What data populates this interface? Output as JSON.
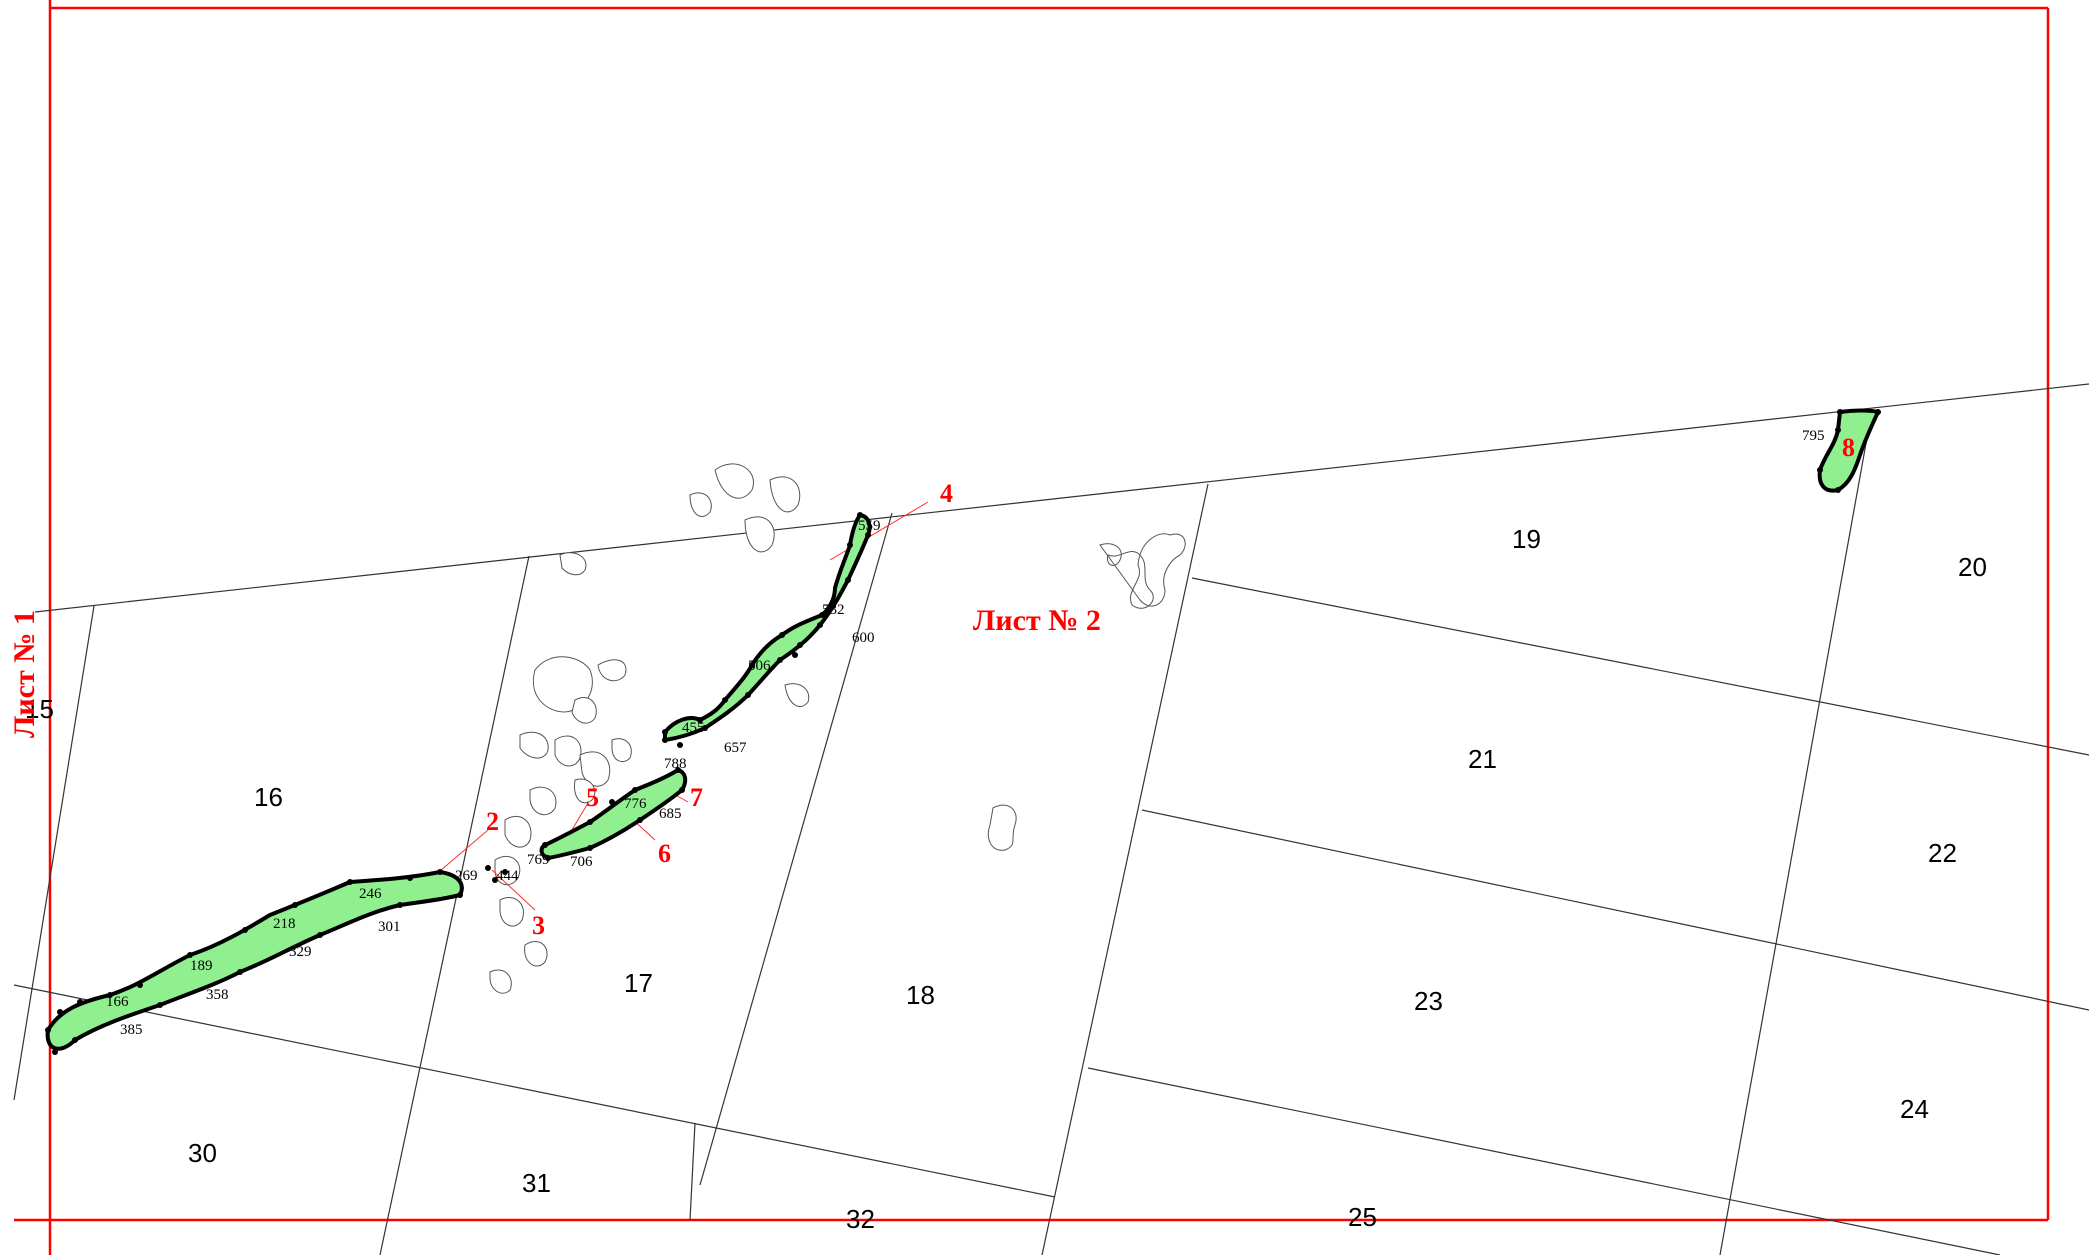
{
  "colors": {
    "frame": "#ff0000",
    "grid": "#000000",
    "zone_fill": "#90f090",
    "zone_border": "#000000",
    "label_red": "#ff0000"
  },
  "sheets": {
    "sheet1": "Лист № 1",
    "sheet2": "Лист № 2"
  },
  "parcels": {
    "p15": "15",
    "p16": "16",
    "p17": "17",
    "p18": "18",
    "p19": "19",
    "p20": "20",
    "p21": "21",
    "p22": "22",
    "p23": "23",
    "p24": "24",
    "p25": "25",
    "p30": "30",
    "p31": "31",
    "p32": "32"
  },
  "points": {
    "pt166": "166",
    "pt189": "189",
    "pt218": "218",
    "pt246": "246",
    "pt269": "269",
    "pt301": "301",
    "pt329": "329",
    "pt358": "358",
    "pt385": "385",
    "pt444": "444",
    "pt455": "455",
    "pt506": "506",
    "pt532": "532",
    "pt559": "559",
    "pt600": "600",
    "pt657": "657",
    "pt685": "685",
    "pt706": "706",
    "pt769": "769",
    "pt776": "776",
    "pt788": "788",
    "pt795": "795"
  },
  "segments": {
    "s2": "2",
    "s3": "3",
    "s4": "4",
    "s5": "5",
    "s6": "6",
    "s7": "7",
    "s8": "8"
  }
}
